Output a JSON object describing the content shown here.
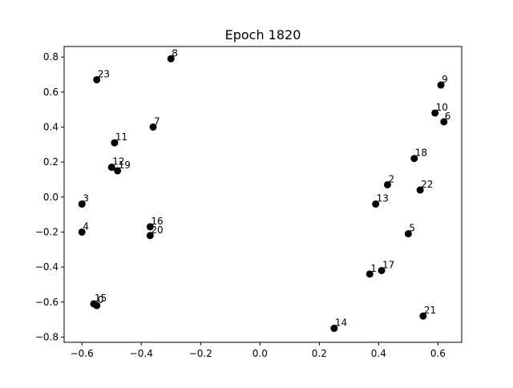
{
  "chart_data": {
    "type": "scatter",
    "title": "Epoch 1820",
    "xlabel": "",
    "ylabel": "",
    "xlim": [
      -0.66,
      0.68
    ],
    "ylim": [
      -0.83,
      0.86
    ],
    "xticks": [
      -0.6,
      -0.4,
      -0.2,
      0.0,
      0.2,
      0.4,
      0.6
    ],
    "xtick_labels": [
      "−0.6",
      "−0.4",
      "−0.2",
      "0.0",
      "0.2",
      "0.4",
      "0.6"
    ],
    "yticks": [
      -0.8,
      -0.6,
      -0.4,
      -0.2,
      0.0,
      0.2,
      0.4,
      0.6,
      0.8
    ],
    "ytick_labels": [
      "−0.8",
      "−0.6",
      "−0.4",
      "−0.2",
      "0.0",
      "0.2",
      "0.4",
      "0.6",
      "0.8"
    ],
    "grid": false,
    "marker_color": "#000000",
    "points": [
      {
        "label": "1",
        "x": 0.37,
        "y": -0.44
      },
      {
        "label": "2",
        "x": 0.43,
        "y": 0.07
      },
      {
        "label": "3",
        "x": -0.6,
        "y": -0.04
      },
      {
        "label": "4",
        "x": -0.6,
        "y": -0.2
      },
      {
        "label": "5",
        "x": 0.5,
        "y": -0.21
      },
      {
        "label": "6",
        "x": 0.62,
        "y": 0.43
      },
      {
        "label": "7",
        "x": -0.36,
        "y": 0.4
      },
      {
        "label": "8",
        "x": -0.3,
        "y": 0.79
      },
      {
        "label": "9",
        "x": 0.61,
        "y": 0.64
      },
      {
        "label": "10",
        "x": 0.59,
        "y": 0.48
      },
      {
        "label": "11",
        "x": -0.49,
        "y": 0.31
      },
      {
        "label": "12",
        "x": -0.5,
        "y": 0.17
      },
      {
        "label": "13",
        "x": 0.39,
        "y": -0.04
      },
      {
        "label": "14",
        "x": 0.25,
        "y": -0.75
      },
      {
        "label": "15",
        "x": -0.56,
        "y": -0.61
      },
      {
        "label": "16",
        "x": -0.37,
        "y": -0.17
      },
      {
        "label": "17",
        "x": 0.41,
        "y": -0.42
      },
      {
        "label": "18",
        "x": 0.52,
        "y": 0.22
      },
      {
        "label": "19",
        "x": -0.48,
        "y": 0.15
      },
      {
        "label": "20",
        "x": -0.37,
        "y": -0.22
      },
      {
        "label": "21",
        "x": 0.55,
        "y": -0.68
      },
      {
        "label": "22",
        "x": 0.54,
        "y": 0.04
      },
      {
        "label": "23",
        "x": -0.55,
        "y": 0.67
      },
      {
        "label": "0",
        "x": -0.55,
        "y": -0.62
      }
    ]
  }
}
